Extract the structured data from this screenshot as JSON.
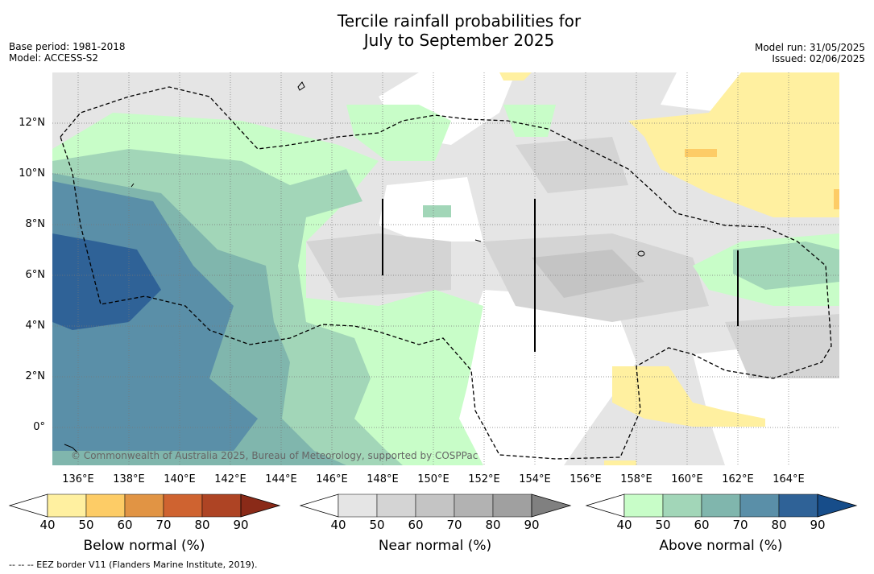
{
  "title_line1": "Tercile rainfall probabilities for",
  "title_line2": "July to September 2025",
  "meta_left": {
    "base_period": "Base period: 1981-2018",
    "model": "Model: ACCESS-S2"
  },
  "meta_right": {
    "model_run": "Model run: 31/05/2025",
    "issued": "Issued: 02/06/2025"
  },
  "copyright": "© Commonwealth of Australia 2025, Bureau of Meteorology, supported by COSPPac",
  "lat_labels": [
    "12°N",
    "10°N",
    "8°N",
    "6°N",
    "4°N",
    "2°N",
    "0°"
  ],
  "lon_labels": [
    "136°E",
    "138°E",
    "140°E",
    "142°E",
    "144°E",
    "146°E",
    "148°E",
    "150°E",
    "152°E",
    "154°E",
    "156°E",
    "158°E",
    "160°E",
    "162°E",
    "164°E"
  ],
  "colorbars": {
    "below": {
      "label": "Below normal (%)",
      "ticks": [
        "40",
        "50",
        "60",
        "70",
        "80",
        "90"
      ],
      "colors": [
        "#ffffff",
        "#fff0a0",
        "#fdcc66",
        "#e19444",
        "#cf6330",
        "#ae4424",
        "#8a2a18"
      ]
    },
    "near": {
      "label": "Near normal (%)",
      "ticks": [
        "40",
        "50",
        "60",
        "70",
        "80",
        "90"
      ],
      "colors": [
        "#ffffff",
        "#e5e5e5",
        "#d4d4d4",
        "#c4c4c4",
        "#b2b2b2",
        "#a0a0a0",
        "#808080"
      ]
    },
    "above": {
      "label": "Above normal (%)",
      "ticks": [
        "40",
        "50",
        "60",
        "70",
        "80",
        "90"
      ],
      "colors": [
        "#ffffff",
        "#c8fdc8",
        "#a2d6b8",
        "#80b6ad",
        "#5a8fa8",
        "#2f6297",
        "#174d8a"
      ]
    }
  },
  "footnote": "--  --  -- EEZ border V11 (Flanders Marine Institute, 2019)."
}
